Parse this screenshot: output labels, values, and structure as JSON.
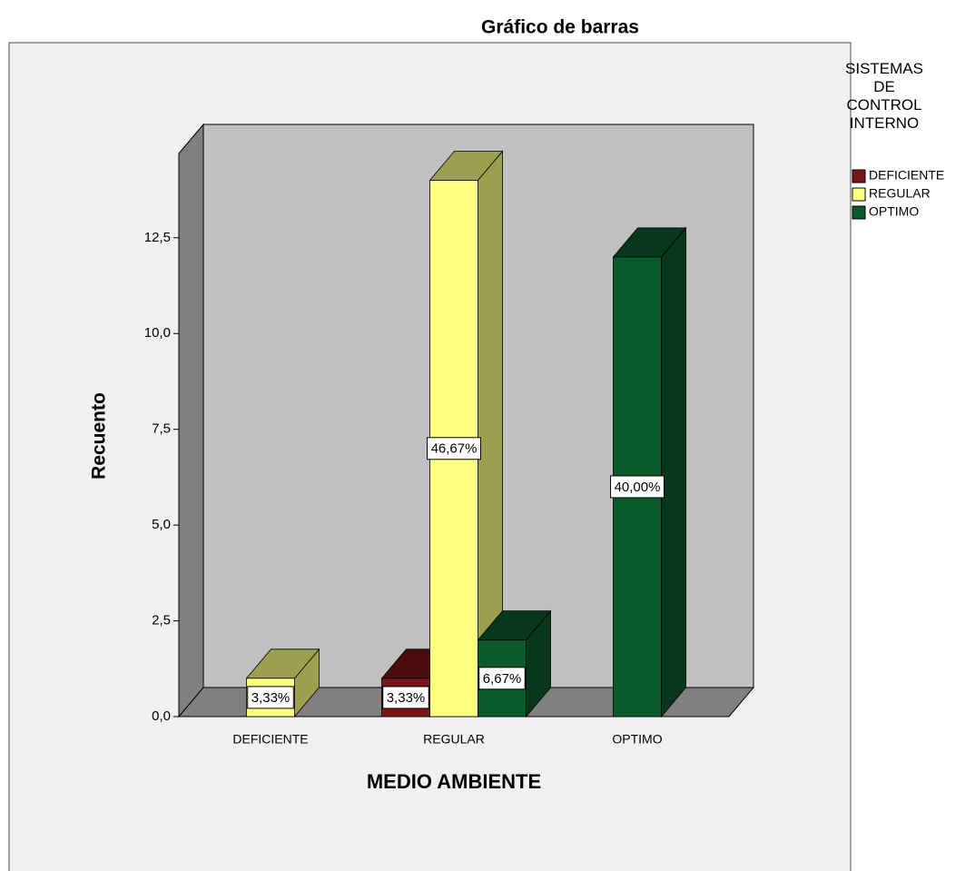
{
  "chart_data": {
    "type": "bar3d",
    "title": "Gráfico de barras",
    "xlabel": "MEDIO AMBIENTE",
    "ylabel": "Recuento",
    "legend_title": "SISTEMAS DE CONTROL INTERNO",
    "categories": [
      "DEFICIENTE",
      "REGULAR",
      "OPTIMO"
    ],
    "series": [
      {
        "name": "DEFICIENTE",
        "color": "#7b1414",
        "values": [
          null,
          1,
          null
        ],
        "value_labels": [
          null,
          "3,33%",
          null
        ]
      },
      {
        "name": "REGULAR",
        "color": "#ffff80",
        "values": [
          1,
          14,
          null
        ],
        "value_labels": [
          "3,33%",
          "46,67%",
          null
        ]
      },
      {
        "name": "OPTIMO",
        "color": "#0b5a2b",
        "values": [
          null,
          2,
          12
        ],
        "value_labels": [
          null,
          "6,67%",
          "40,00%"
        ]
      }
    ],
    "ylim": [
      0,
      14.7
    ],
    "yticks": [
      {
        "value": 0,
        "label": "0,0"
      },
      {
        "value": 2.5,
        "label": "2,5"
      },
      {
        "value": 5,
        "label": "5,0"
      },
      {
        "value": 7.5,
        "label": "7,5"
      },
      {
        "value": 10,
        "label": "10,0"
      },
      {
        "value": 12.5,
        "label": "12,5"
      }
    ],
    "legend": "right"
  }
}
